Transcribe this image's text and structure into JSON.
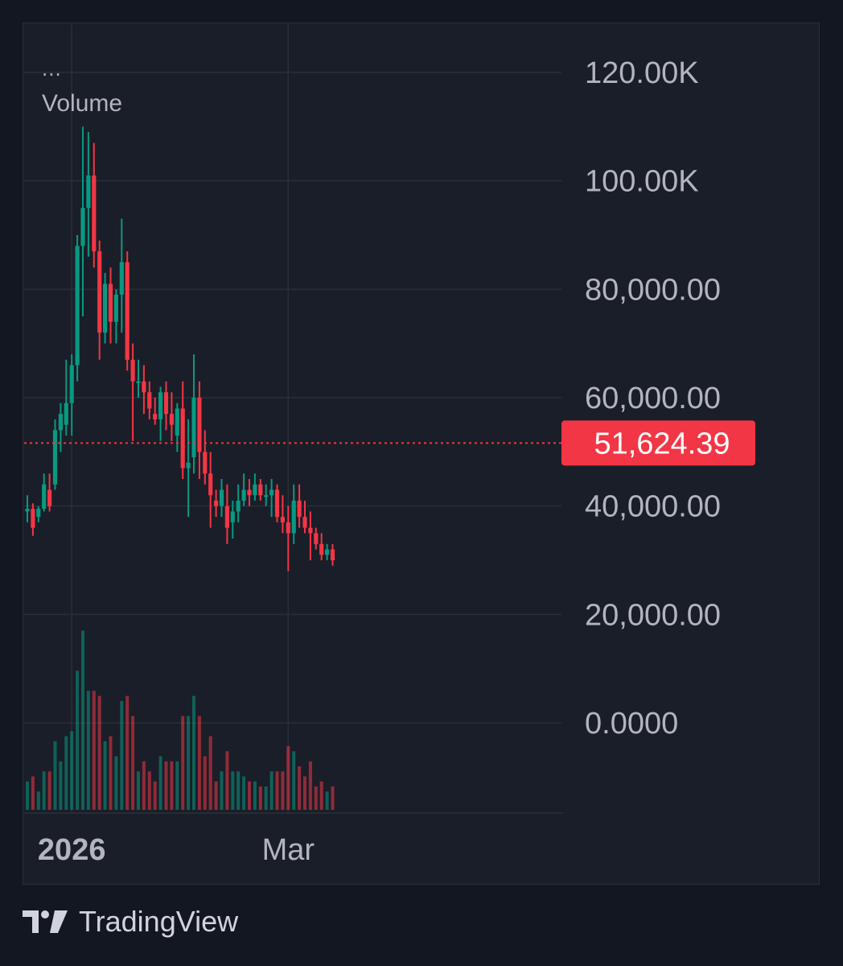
{
  "legend": {
    "menu_dots": "...",
    "indicator": "Volume"
  },
  "price_scale": {
    "ticks": [
      "120.00K",
      "100.00K",
      "80,000.00",
      "60,000.00",
      "40,000.00",
      "20,000.00",
      "0.0000"
    ],
    "last_price_label": "51,624.39"
  },
  "time_scale": {
    "ticks": [
      "2026",
      "Mar"
    ]
  },
  "brand": {
    "icon": "tradingview-logo-icon",
    "name": "TradingView"
  },
  "colors": {
    "background": "#1a1e28",
    "grid": "#2a2e39",
    "up": "#089981",
    "down": "#f23645",
    "text": "#b2b5be",
    "price_label_bg": "#f23645"
  },
  "chart_data": {
    "type": "candlestick",
    "ylim": [
      0,
      120000
    ],
    "y_ticks": [
      0,
      20000,
      40000,
      60000,
      80000,
      100000,
      120000
    ],
    "last_price": 51624.39,
    "x_ticks": [
      {
        "label": "2026",
        "index": 8
      },
      {
        "label": "Mar",
        "index": 47
      }
    ],
    "candles": [
      {
        "o": 39000,
        "h": 42000,
        "l": 37000,
        "c": 39500
      },
      {
        "o": 39500,
        "h": 40500,
        "l": 34500,
        "c": 36000
      },
      {
        "o": 38000,
        "h": 40000,
        "l": 37000,
        "c": 39500
      },
      {
        "o": 39500,
        "h": 46000,
        "l": 39000,
        "c": 44000
      },
      {
        "o": 43000,
        "h": 46000,
        "l": 39000,
        "c": 40000
      },
      {
        "o": 44000,
        "h": 56000,
        "l": 43000,
        "c": 54000
      },
      {
        "o": 54000,
        "h": 59000,
        "l": 50000,
        "c": 57000
      },
      {
        "o": 55000,
        "h": 67000,
        "l": 53000,
        "c": 59000
      },
      {
        "o": 59000,
        "h": 68000,
        "l": 53000,
        "c": 66000
      },
      {
        "o": 66000,
        "h": 90000,
        "l": 63000,
        "c": 88000
      },
      {
        "o": 88000,
        "h": 110000,
        "l": 75000,
        "c": 95000
      },
      {
        "o": 95000,
        "h": 109000,
        "l": 86000,
        "c": 101000
      },
      {
        "o": 101000,
        "h": 107000,
        "l": 84000,
        "c": 87000
      },
      {
        "o": 87000,
        "h": 89000,
        "l": 67000,
        "c": 72000
      },
      {
        "o": 72000,
        "h": 83000,
        "l": 70000,
        "c": 81000
      },
      {
        "o": 81000,
        "h": 84000,
        "l": 70000,
        "c": 74000
      },
      {
        "o": 74000,
        "h": 80000,
        "l": 70000,
        "c": 79000
      },
      {
        "o": 79000,
        "h": 93000,
        "l": 72000,
        "c": 85000
      },
      {
        "o": 85000,
        "h": 87000,
        "l": 65000,
        "c": 67000
      },
      {
        "o": 67000,
        "h": 70000,
        "l": 52000,
        "c": 63000
      },
      {
        "o": 63000,
        "h": 67000,
        "l": 60000,
        "c": 63000
      },
      {
        "o": 63000,
        "h": 66000,
        "l": 57000,
        "c": 61000
      },
      {
        "o": 61000,
        "h": 63000,
        "l": 56000,
        "c": 58000
      },
      {
        "o": 57000,
        "h": 60000,
        "l": 55000,
        "c": 56000
      },
      {
        "o": 56000,
        "h": 62000,
        "l": 52000,
        "c": 61000
      },
      {
        "o": 61000,
        "h": 63000,
        "l": 54000,
        "c": 57000
      },
      {
        "o": 57000,
        "h": 61000,
        "l": 52000,
        "c": 55000
      },
      {
        "o": 53000,
        "h": 59000,
        "l": 50000,
        "c": 58000
      },
      {
        "o": 58000,
        "h": 63000,
        "l": 45000,
        "c": 47000
      },
      {
        "o": 47000,
        "h": 56000,
        "l": 38000,
        "c": 48000
      },
      {
        "o": 49000,
        "h": 68000,
        "l": 46000,
        "c": 60000
      },
      {
        "o": 60000,
        "h": 63000,
        "l": 45000,
        "c": 50000
      },
      {
        "o": 50000,
        "h": 54000,
        "l": 44000,
        "c": 46000
      },
      {
        "o": 46000,
        "h": 50000,
        "l": 36000,
        "c": 42000
      }
    ],
    "candles_2": [
      {
        "o": 41000,
        "h": 43000,
        "l": 38000,
        "c": 40000
      },
      {
        "o": 40000,
        "h": 45000,
        "l": 38000,
        "c": 43000
      },
      {
        "o": 40000,
        "h": 44000,
        "l": 33000,
        "c": 36000
      },
      {
        "o": 37000,
        "h": 41000,
        "l": 34000,
        "c": 39000
      },
      {
        "o": 39000,
        "h": 44000,
        "l": 37000,
        "c": 41000
      },
      {
        "o": 41000,
        "h": 46000,
        "l": 40000,
        "c": 43000
      },
      {
        "o": 43000,
        "h": 45000,
        "l": 40000,
        "c": 42000
      },
      {
        "o": 42000,
        "h": 46000,
        "l": 41000,
        "c": 44000
      },
      {
        "o": 44000,
        "h": 45000,
        "l": 41000,
        "c": 42000
      },
      {
        "o": 42000,
        "h": 44000,
        "l": 40000,
        "c": 42000
      },
      {
        "o": 42000,
        "h": 45000,
        "l": 38000,
        "c": 43000
      },
      {
        "o": 43000,
        "h": 44000,
        "l": 37000,
        "c": 38000
      },
      {
        "o": 38000,
        "h": 42000,
        "l": 35000,
        "c": 37000
      },
      {
        "o": 37000,
        "h": 40000,
        "l": 28000,
        "c": 35000
      },
      {
        "o": 35000,
        "h": 44000,
        "l": 33000,
        "c": 41000
      },
      {
        "o": 41000,
        "h": 44000,
        "l": 36000,
        "c": 38000
      },
      {
        "o": 38000,
        "h": 41000,
        "l": 35000,
        "c": 36000
      },
      {
        "o": 36000,
        "h": 39000,
        "l": 30000,
        "c": 35000
      },
      {
        "o": 35000,
        "h": 36000,
        "l": 32000,
        "c": 33000
      },
      {
        "o": 33000,
        "h": 35000,
        "l": 30000,
        "c": 31000
      },
      {
        "o": 31000,
        "h": 33000,
        "l": 30000,
        "c": 32000
      },
      {
        "o": 32000,
        "h": 33000,
        "l": 29000,
        "c": 30000
      }
    ]
  }
}
